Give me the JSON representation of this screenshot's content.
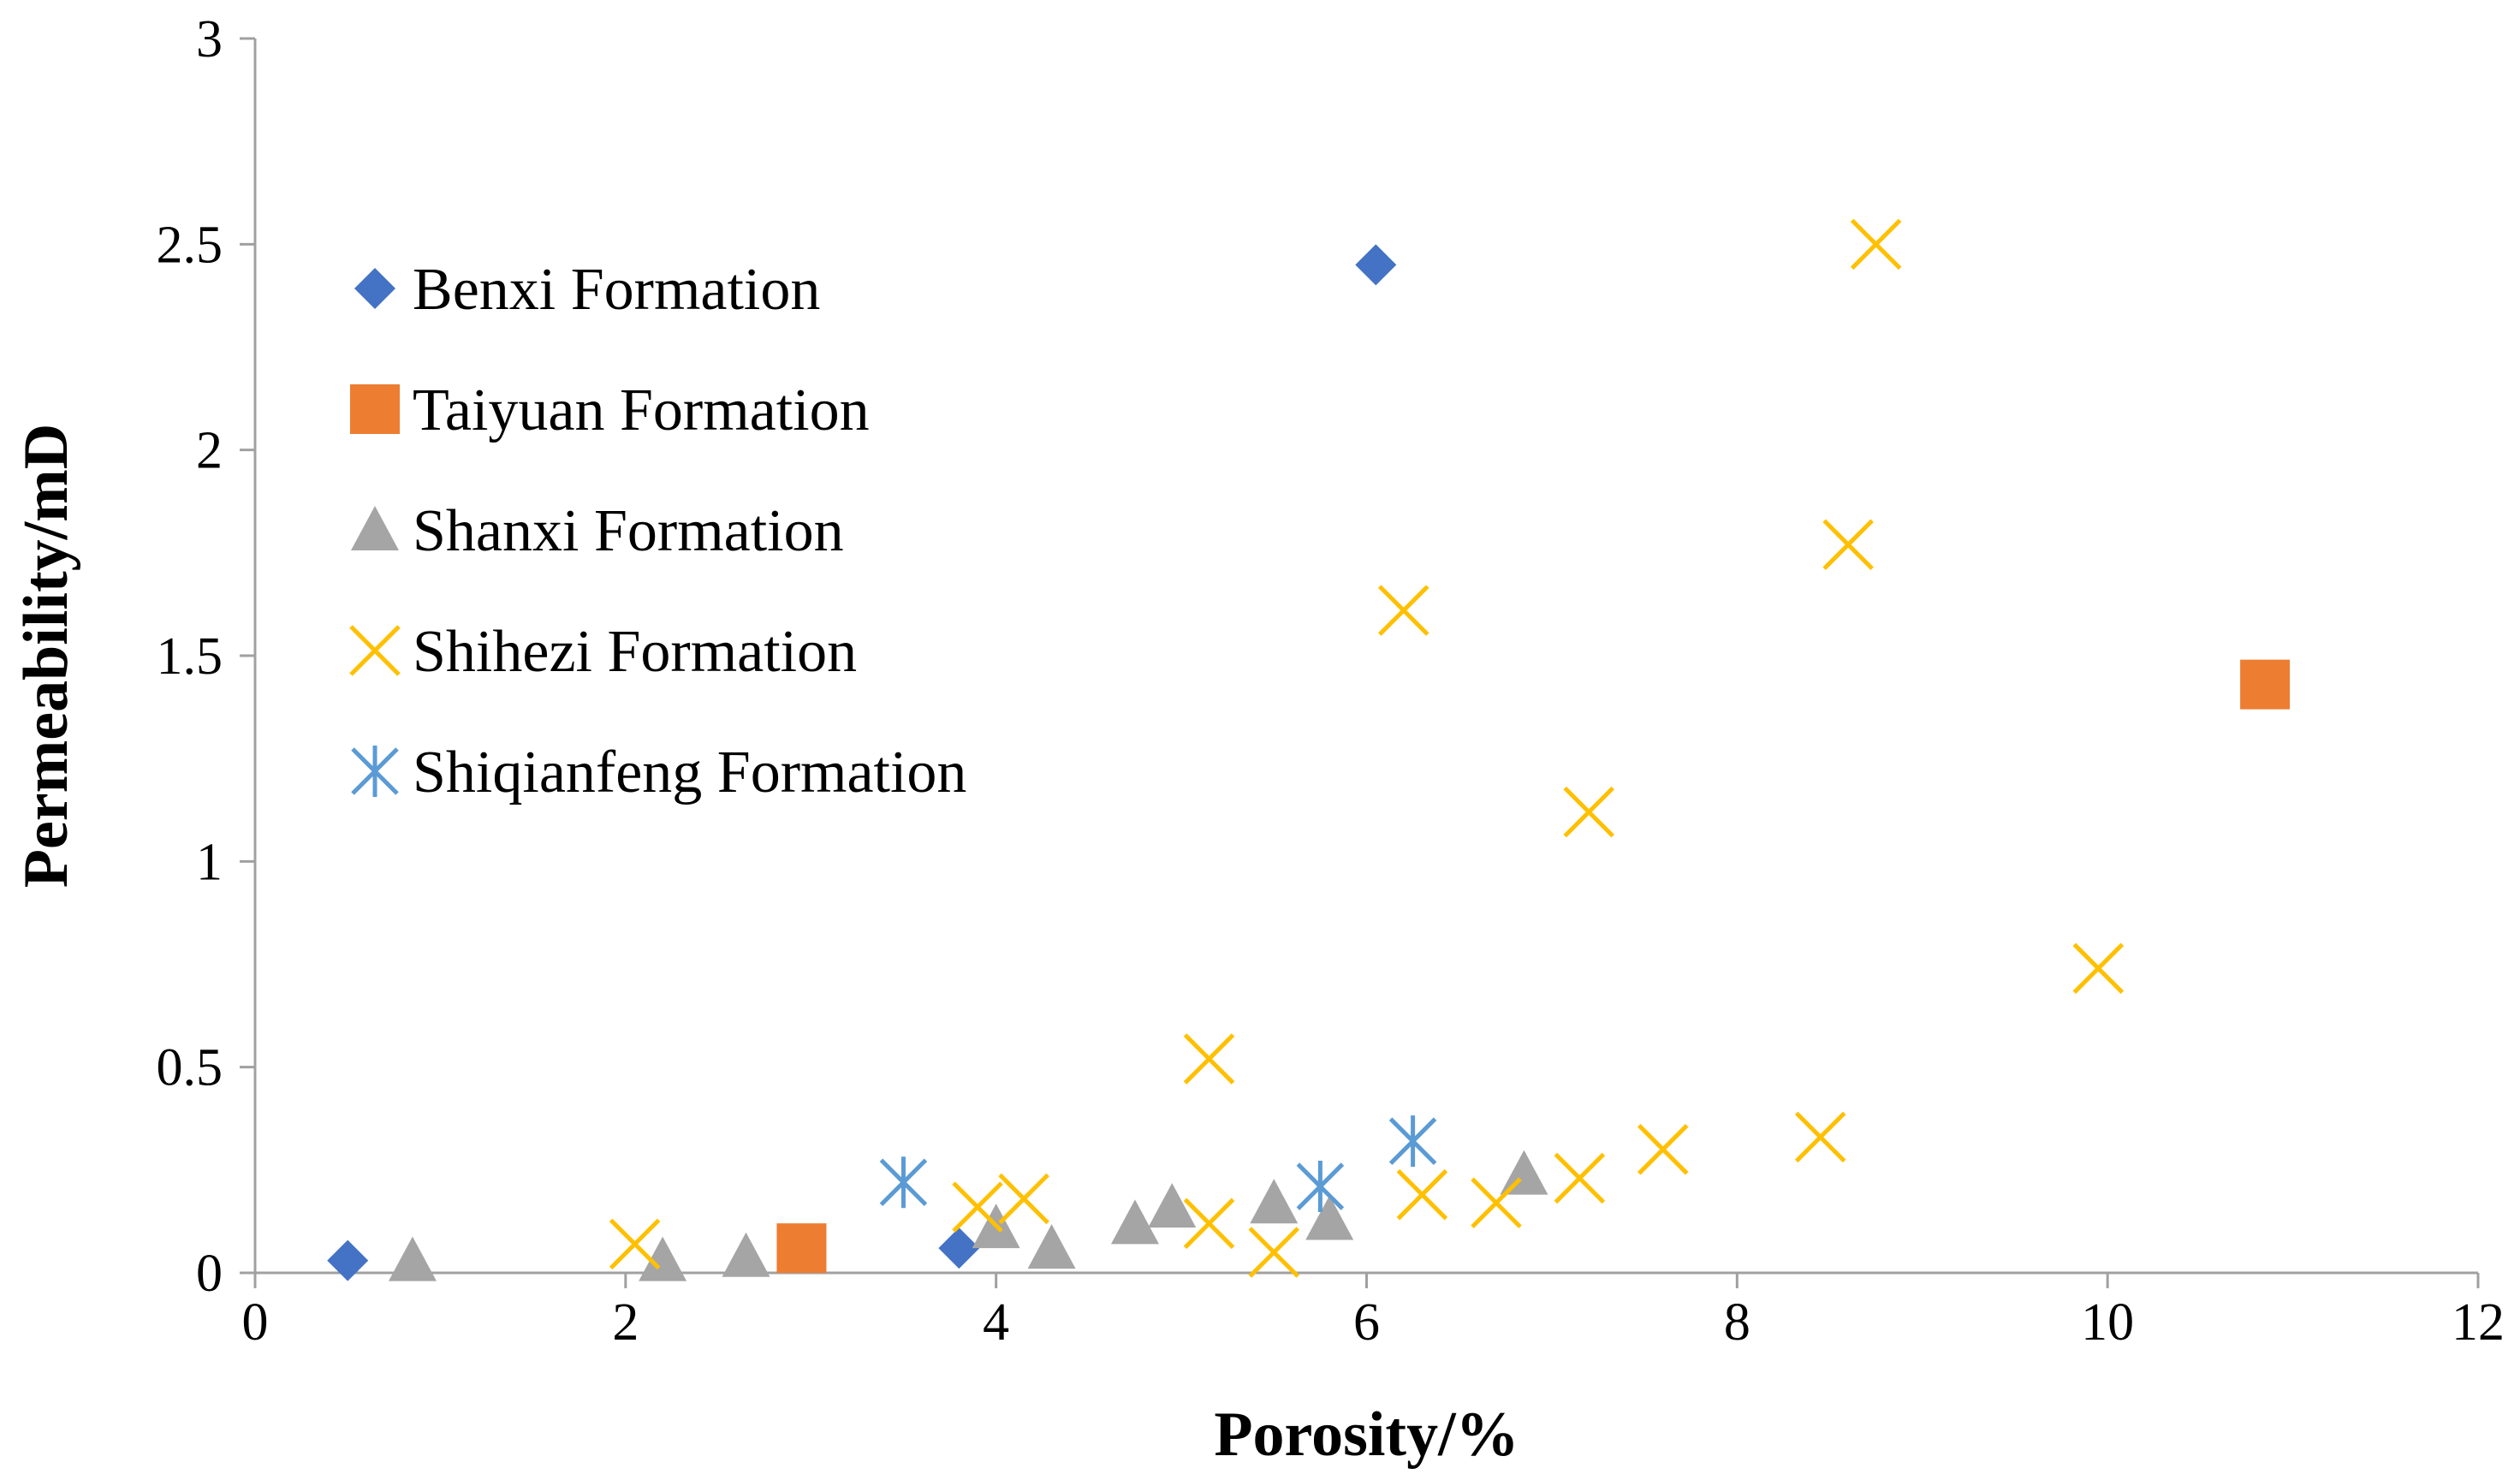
{
  "chart_data": {
    "type": "scatter",
    "title": "",
    "xlabel": "Porosity/%",
    "ylabel": "Permeability/mD",
    "xlim": [
      0,
      12
    ],
    "ylim": [
      0,
      3
    ],
    "xticks": [
      0,
      2,
      4,
      6,
      8,
      10,
      12
    ],
    "yticks": [
      0,
      0.5,
      1,
      1.5,
      2,
      2.5,
      3
    ],
    "xtick_labels": [
      "0",
      "2",
      "4",
      "6",
      "8",
      "10",
      "12"
    ],
    "ytick_labels": [
      "0",
      "0.5",
      "1",
      "1.5",
      "2",
      "2.5",
      "3"
    ],
    "grid": false,
    "legend_position": "left, upper-middle",
    "series": [
      {
        "name": "Benxi Formation",
        "marker": "diamond",
        "color": "#4472C4",
        "points": [
          [
            0.5,
            0.03
          ],
          [
            3.8,
            0.06
          ],
          [
            6.05,
            2.45
          ]
        ]
      },
      {
        "name": "Taiyuan Formation",
        "marker": "square",
        "color": "#ED7D31",
        "points": [
          [
            2.95,
            0.06
          ],
          [
            10.85,
            1.43
          ]
        ]
      },
      {
        "name": "Shanxi Formation",
        "marker": "triangle",
        "color": "#A5A5A5",
        "points": [
          [
            0.85,
            0.03
          ],
          [
            2.2,
            0.03
          ],
          [
            2.65,
            0.04
          ],
          [
            4.0,
            0.11
          ],
          [
            4.3,
            0.06
          ],
          [
            4.75,
            0.12
          ],
          [
            4.95,
            0.16
          ],
          [
            5.5,
            0.17
          ],
          [
            5.8,
            0.13
          ],
          [
            6.85,
            0.24
          ]
        ]
      },
      {
        "name": "Shihezi Formation",
        "marker": "x",
        "color": "#FFC000",
        "points": [
          [
            2.05,
            0.07
          ],
          [
            3.9,
            0.16
          ],
          [
            4.15,
            0.18
          ],
          [
            5.15,
            0.52
          ],
          [
            5.15,
            0.12
          ],
          [
            5.5,
            0.05
          ],
          [
            6.2,
            1.61
          ],
          [
            6.3,
            0.19
          ],
          [
            6.7,
            0.17
          ],
          [
            7.2,
            1.12
          ],
          [
            7.15,
            0.23
          ],
          [
            7.6,
            0.3
          ],
          [
            8.45,
            0.33
          ],
          [
            8.6,
            1.77
          ],
          [
            8.75,
            2.5
          ],
          [
            9.95,
            0.74
          ]
        ]
      },
      {
        "name": "Shiqianfeng Formation",
        "marker": "asterisk",
        "color": "#5B9BD5",
        "points": [
          [
            3.5,
            0.22
          ],
          [
            5.75,
            0.21
          ],
          [
            6.25,
            0.32
          ]
        ]
      }
    ]
  }
}
